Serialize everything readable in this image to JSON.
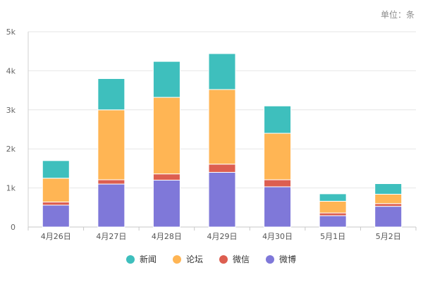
{
  "chart_data": {
    "type": "bar",
    "stacked": true,
    "unit_label": "单位：条",
    "categories": [
      "4月26日",
      "4月27日",
      "4月28日",
      "4月29日",
      "4月30日",
      "5月1日",
      "5月2日"
    ],
    "series": [
      {
        "name": "微博",
        "color": "#7f78d9",
        "values": [
          560,
          1100,
          1200,
          1400,
          1030,
          290,
          530
        ]
      },
      {
        "name": "微信",
        "color": "#dd5e50",
        "values": [
          80,
          110,
          160,
          210,
          180,
          70,
          70
        ]
      },
      {
        "name": "论坛",
        "color": "#ffb554",
        "values": [
          610,
          1790,
          1960,
          1910,
          1190,
          300,
          240
        ]
      },
      {
        "name": "新闻",
        "color": "#3ebfbd",
        "values": [
          450,
          800,
          920,
          920,
          700,
          190,
          270
        ]
      }
    ],
    "legend_order": [
      "新闻",
      "论坛",
      "微信",
      "微博"
    ],
    "ylim": [
      0,
      5000
    ],
    "yticks": [
      0,
      1000,
      2000,
      3000,
      4000,
      5000
    ],
    "ytick_labels": [
      "0",
      "1k",
      "2k",
      "3k",
      "4k",
      "5k"
    ],
    "xlabel": "",
    "ylabel": "",
    "grid": true,
    "legend_position": "bottom"
  }
}
